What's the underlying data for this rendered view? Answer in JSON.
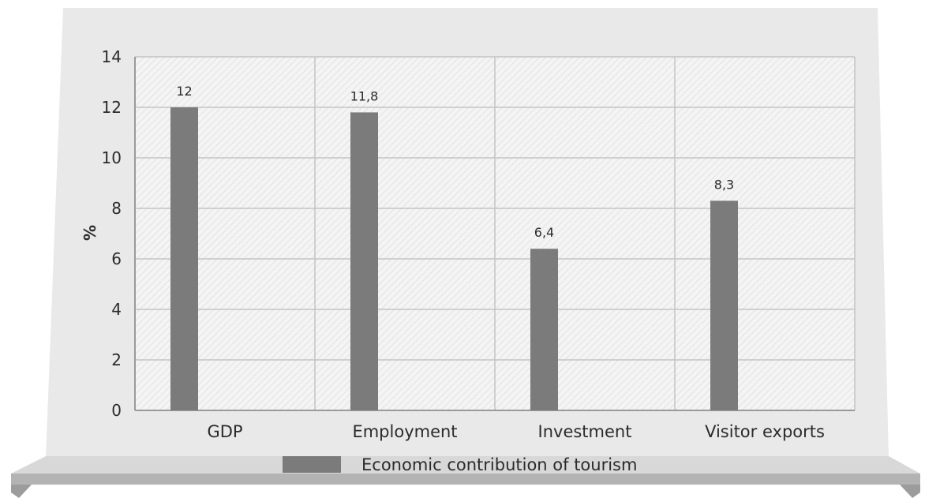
{
  "chart_data": {
    "type": "bar",
    "categories": [
      "GDP",
      "Employment",
      "Investment",
      "Visitor exports"
    ],
    "series": [
      {
        "name": "Economic contribution of tourism",
        "values": [
          12,
          11.8,
          6.4,
          8.3
        ],
        "data_labels": [
          "12",
          "11,8",
          "6,4",
          "8,3"
        ]
      }
    ],
    "ylabel": "%",
    "xlabel": "",
    "ylim": [
      0,
      14
    ],
    "yticks": [
      0,
      2,
      4,
      6,
      8,
      10,
      12,
      14
    ],
    "grid": true,
    "legend": "bottom-center"
  },
  "colors": {
    "bar": "#7b7b7b",
    "panel": "#e8e8e8",
    "plot_bg": "#f4f4f4",
    "hatch": "#e3e3e3",
    "grid": "#c4c4c4",
    "shelf_top": "#d7d7d7",
    "shelf_front": "#b0b0b0",
    "text": "#2b2b2b"
  }
}
